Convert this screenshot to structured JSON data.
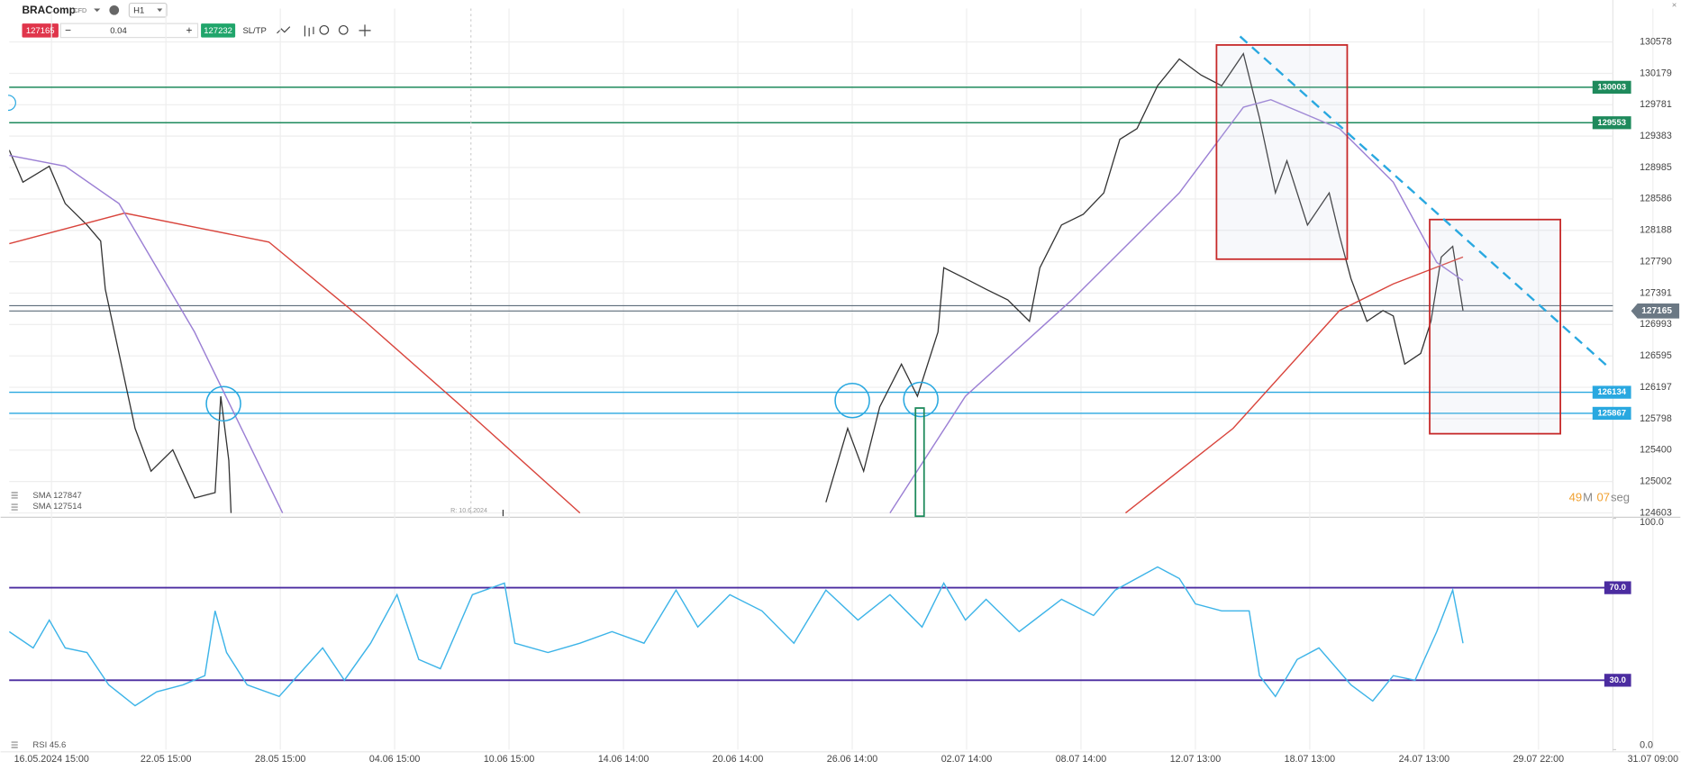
{
  "header": {
    "symbol": "BRAComp",
    "instrument_type": "CFD",
    "timeframe": "H1",
    "sell_price": "127165",
    "volume": "0.04",
    "buy_price": "127232",
    "sl_tp": "SL/TP"
  },
  "legend": {
    "sma_red": "SMA 127847",
    "sma_purple": "SMA 127514",
    "rsi": "RSI 45.6"
  },
  "timer": {
    "minutes": "49",
    "minutes_unit": "M",
    "seconds": "07",
    "seconds_unit": "seg"
  },
  "annotation": "R: 10.6.2024",
  "chart_data": [
    {
      "type": "line",
      "xlim": [
        -0.37,
        13.65
      ],
      "xticks": [
        {
          "value": 0,
          "label": "16.05.2024 15:00"
        },
        {
          "value": 1,
          "label": "22.05 15:00"
        },
        {
          "value": 2,
          "label": "28.05 15:00"
        },
        {
          "value": 3,
          "label": "04.06 15:00"
        },
        {
          "value": 4,
          "label": "10.06 15:00"
        },
        {
          "value": 5,
          "label": "14.06 14:00"
        },
        {
          "value": 6,
          "label": "20.06 14:00"
        },
        {
          "value": 7,
          "label": "26.06 14:00"
        },
        {
          "value": 8,
          "label": "02.07 14:00"
        },
        {
          "value": 9,
          "label": "08.07 14:00"
        },
        {
          "value": 10,
          "label": "12.07 13:00"
        },
        {
          "value": 11,
          "label": "18.07 13:00"
        },
        {
          "value": 12,
          "label": "24.07 13:00"
        },
        {
          "value": 13,
          "label": "29.07 22:00"
        },
        {
          "value": 14,
          "label": "31.07 09:00"
        }
      ],
      "ylim": [
        124562,
        131001
      ],
      "yticks": [
        130578,
        130179,
        129781,
        129383,
        128985,
        128586,
        128188,
        127790,
        127391,
        126993,
        126595,
        126197,
        125798,
        125400,
        125002,
        124603
      ],
      "grid": true,
      "series": [
        {
          "color": "#333333",
          "x": [
            -0.37,
            -0.25,
            -0.02,
            0.12,
            0.31,
            0.43,
            0.47,
            0.59,
            0.73,
            0.87,
            1.06,
            1.25,
            1.43,
            1.48,
            1.55,
            1.57,
            4.0,
            6.77,
            6.96,
            7.1,
            7.24,
            7.43,
            7.57,
            7.75,
            7.8,
            7.99,
            8.17,
            8.36,
            8.55,
            8.64,
            8.83,
            9.02,
            9.2,
            9.34,
            9.49,
            9.67,
            9.86,
            10.05,
            10.23,
            10.42,
            10.56,
            10.7,
            10.8,
            10.98,
            11.17,
            11.26,
            11.36,
            11.5,
            11.64,
            11.73,
            11.83,
            11.97,
            12.06,
            12.15,
            12.25,
            12.34
          ],
          "values": [
            129206,
            128799,
            129002,
            128527,
            128256,
            128052,
            127441,
            126627,
            125676,
            125133,
            125404,
            124793,
            124861,
            126084,
            125269,
            124603,
            null,
            124739,
            125676,
            125133,
            125948,
            126491,
            126084,
            126899,
            127713,
            127577,
            127441,
            127305,
            127034,
            127713,
            128256,
            128392,
            128663,
            129342,
            129478,
            130021,
            130361,
            130157,
            130021,
            130429,
            129614,
            128663,
            129071,
            128256,
            128663,
            128120,
            127577,
            127034,
            127170,
            127102,
            126491,
            126627,
            127034,
            127849,
            127985,
            127170
          ]
        },
        {
          "name": "SMA 127847",
          "color": "#d9453d",
          "x": [
            -0.37,
            0.64,
            1.9,
            2.74,
            3.59,
            4.62,
            7.0,
            9.39,
            10.33,
            11.26,
            11.73,
            12.34
          ],
          "values": [
            128019,
            128406,
            128039,
            127034,
            125948,
            124603,
            null,
            124603,
            125676,
            127170,
            127509,
            127849
          ]
        },
        {
          "name": "SMA 127514",
          "color": "#9b7fd4",
          "x": [
            -0.37,
            0.12,
            0.59,
            1.25,
            2.02,
            5.0,
            7.33,
            7.99,
            8.92,
            9.86,
            10.42,
            10.66,
            11.26,
            11.73,
            12.11,
            12.34
          ],
          "values": [
            129138,
            129002,
            128527,
            126899,
            124603,
            null,
            124603,
            126084,
            127305,
            128663,
            129750,
            129845,
            129478,
            128799,
            127781,
            127550
          ]
        }
      ],
      "levels": [
        {
          "value": 130003,
          "color": "#1e8a5c"
        },
        {
          "value": 129553,
          "color": "#1e8a5c"
        },
        {
          "value": 126134,
          "color": "#29a8e0"
        },
        {
          "value": 125867,
          "color": "#29a8e0"
        }
      ],
      "price_lines": [
        127165,
        127232
      ]
    },
    {
      "type": "line",
      "xlim": [
        -0.37,
        13.65
      ],
      "ylim": [
        0,
        100
      ],
      "yticks": [
        {
          "value": 100,
          "label": "100.0"
        },
        {
          "value": 0,
          "label": "0.0"
        }
      ],
      "series": [
        {
          "color": "#3db4e8",
          "x": [
            -0.37,
            -0.16,
            -0.02,
            0.12,
            0.31,
            0.5,
            0.73,
            0.92,
            1.15,
            1.34,
            1.43,
            1.53,
            1.71,
            1.99,
            2.37,
            2.56,
            2.79,
            3.02,
            3.21,
            3.4,
            3.68,
            3.96,
            4.05,
            4.34,
            4.62,
            4.9,
            5.18,
            5.46,
            5.65,
            5.93,
            6.21,
            6.49,
            6.77,
            7.05,
            7.33,
            7.61,
            7.8,
            7.99,
            8.17,
            8.46,
            8.83,
            9.11,
            9.3,
            9.67,
            9.86,
            10.0,
            10.23,
            10.47,
            10.56,
            10.7,
            10.89,
            11.08,
            11.36,
            11.55,
            11.73,
            11.92,
            12.11,
            12.25,
            12.34
          ],
          "values": [
            51,
            44,
            56,
            44,
            42,
            28,
            19,
            25,
            28,
            32,
            60,
            42,
            28,
            23,
            44,
            30,
            46,
            67,
            39,
            35,
            67,
            72,
            46,
            42,
            46,
            51,
            46,
            69,
            53,
            67,
            60,
            46,
            69,
            56,
            67,
            53,
            72,
            56,
            65,
            51,
            65,
            58,
            69,
            79,
            74,
            63,
            60,
            60,
            32,
            23,
            39,
            44,
            28,
            21,
            32,
            30,
            51,
            69,
            46
          ]
        }
      ],
      "levels": [
        {
          "value": 70,
          "label": "70.0",
          "color": "#4b2ca0"
        },
        {
          "value": 30,
          "label": "30.0",
          "color": "#4b2ca0"
        }
      ]
    }
  ]
}
